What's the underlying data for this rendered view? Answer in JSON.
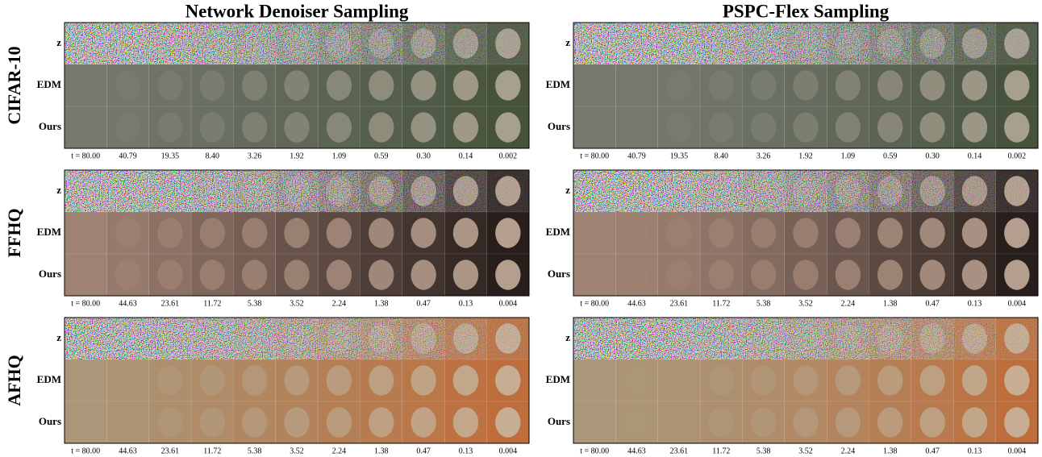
{
  "panels": [
    {
      "title": "Network Denoiser Sampling"
    },
    {
      "title": "PSPC-Flex Sampling"
    }
  ],
  "row_labels": [
    "z",
    "EDM",
    "Ours"
  ],
  "datasets": [
    {
      "name": "CIFAR-10",
      "timesteps": [
        "t = 80.00",
        "40.79",
        "19.35",
        "8.40",
        "3.26",
        "1.92",
        "1.09",
        "0.59",
        "0.30",
        "0.14",
        "0.002"
      ]
    },
    {
      "name": "FFHQ",
      "timesteps": [
        "t = 80.00",
        "44.63",
        "23.61",
        "11.72",
        "5.38",
        "3.52",
        "2.24",
        "1.38",
        "0.47",
        "0.13",
        "0.004"
      ]
    },
    {
      "name": "AFHQ",
      "timesteps": [
        "t = 80.00",
        "44.63",
        "23.61",
        "11.72",
        "5.38",
        "3.52",
        "2.24",
        "1.38",
        "0.47",
        "0.13",
        "0.004"
      ]
    }
  ]
}
